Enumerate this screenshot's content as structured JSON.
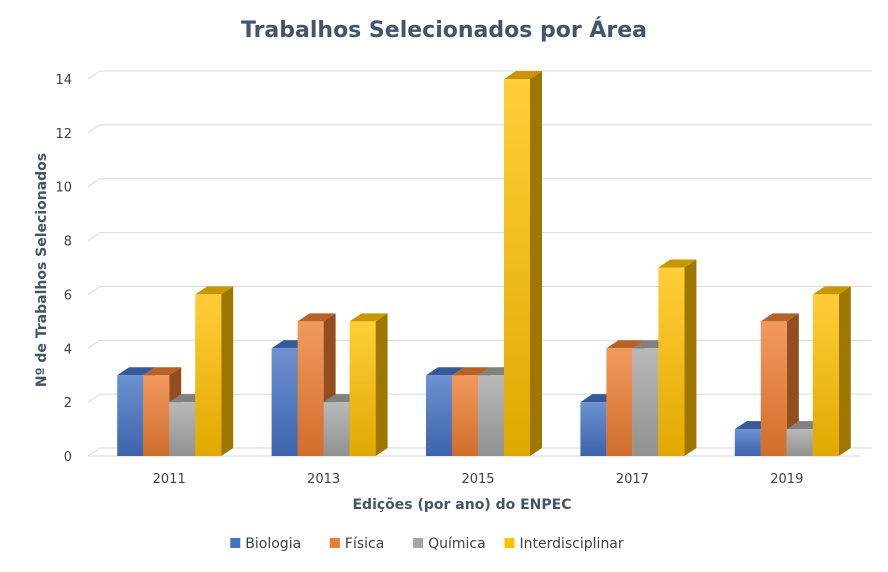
{
  "chart_data": {
    "type": "bar",
    "title": "Trabalhos Selecionados por Área",
    "xlabel": "Edições (por ano) do ENPEC",
    "ylabel": "Nº de Trabalhos Selecionados",
    "categories": [
      "2011",
      "2013",
      "2015",
      "2017",
      "2019"
    ],
    "ylim": [
      0,
      14
    ],
    "yticks": [
      0,
      2,
      4,
      6,
      8,
      10,
      12,
      14
    ],
    "grid": true,
    "legend_position": "bottom",
    "series": [
      {
        "name": "Biologia",
        "values": [
          3,
          4,
          3,
          2,
          1
        ],
        "color": "#4472c4"
      },
      {
        "name": "Física",
        "values": [
          3,
          5,
          3,
          4,
          5
        ],
        "color": "#ed7d31"
      },
      {
        "name": "Química",
        "values": [
          2,
          2,
          3,
          4,
          1
        ],
        "color": "#a5a5a5"
      },
      {
        "name": "Interdisciplinar",
        "values": [
          6,
          5,
          14,
          7,
          6
        ],
        "color": "#ffc000"
      }
    ]
  }
}
